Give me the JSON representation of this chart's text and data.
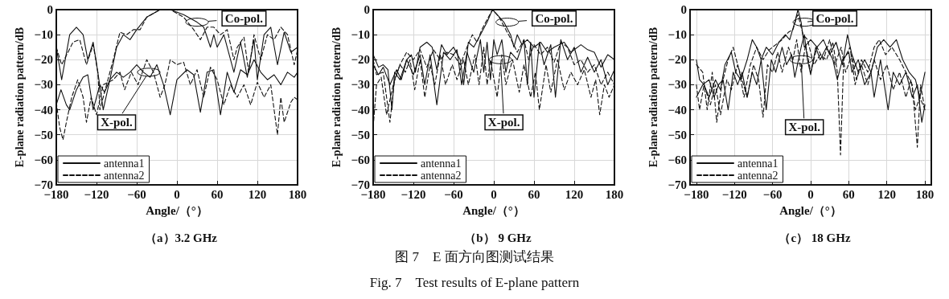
{
  "chart_data": [
    {
      "type": "line",
      "title": "（a）3.2 GHz",
      "xlabel": "Angle/（°）",
      "ylabel": "E-plane radiation pattern/dB",
      "xlim": [
        -180,
        180
      ],
      "xticks": [
        -180,
        -120,
        -60,
        0,
        60,
        120,
        180
      ],
      "ylim": [
        -70,
        0
      ],
      "yticks": [
        -70,
        -60,
        -50,
        -40,
        -30,
        -20,
        -10,
        0
      ],
      "grid": true,
      "legend": "bottom left",
      "marker": "none",
      "annotations": [
        {
          "text": "Co-pol.",
          "x": 30,
          "y": -5
        },
        {
          "text": "X-pol.",
          "x": -42,
          "y": -25
        }
      ],
      "series": [
        {
          "name": "antenna1",
          "color": "#111111",
          "line_style": "solid",
          "x": [
            -180,
            -172,
            -160,
            -150,
            -140,
            -133,
            -125,
            -118,
            -110,
            -100,
            -90,
            -80,
            -70,
            -60,
            -45,
            -25,
            -10,
            10,
            30,
            40,
            50,
            55,
            60,
            70,
            85,
            95,
            105,
            115,
            120,
            130,
            140,
            150,
            160,
            170,
            180
          ],
          "values": [
            -15,
            -28,
            -10,
            -7,
            -10,
            -20,
            -13,
            -25,
            -40,
            -28,
            -15,
            -10,
            -12,
            -8,
            -3,
            0,
            0,
            -2,
            -5,
            -7,
            -15,
            -10,
            -15,
            -10,
            -25,
            -13,
            -27,
            -12,
            -28,
            -10,
            -7,
            -22,
            -9,
            -17,
            -15
          ]
        },
        {
          "name": "antenna2",
          "color": "#111111",
          "line_style": "dashed",
          "x": [
            -180,
            -172,
            -155,
            -145,
            -135,
            -125,
            -118,
            -115,
            -105,
            -95,
            -85,
            -75,
            -65,
            -55,
            -45,
            -25,
            -10,
            10,
            25,
            35,
            45,
            55,
            65,
            75,
            85,
            90,
            100,
            107,
            115,
            125,
            135,
            145,
            155,
            165,
            175,
            180
          ],
          "values": [
            -15,
            -22,
            -13,
            -12,
            -22,
            -14,
            -25,
            -40,
            -30,
            -20,
            -9,
            -10,
            -8,
            -8,
            -3,
            0,
            0,
            -3,
            -8,
            -12,
            -7,
            -7,
            -10,
            -8,
            -20,
            -15,
            -11,
            -25,
            -10,
            -20,
            -10,
            -12,
            -7,
            -10,
            -22,
            -16
          ]
        },
        {
          "color": "#111111",
          "line_style": "solid",
          "x": [
            -180,
            -173,
            -165,
            -160,
            -150,
            -140,
            -133,
            -125,
            -115,
            -108,
            -100,
            -90,
            -80,
            -70,
            -60,
            -50,
            -40,
            -30,
            -20,
            -10,
            0,
            15,
            25,
            35,
            45,
            55,
            65,
            75,
            85,
            95,
            105,
            115,
            125,
            135,
            145,
            155,
            165,
            175,
            180
          ],
          "values": [
            -38,
            -32,
            -38,
            -40,
            -32,
            -27,
            -26,
            -40,
            -30,
            -33,
            -28,
            -25,
            -27,
            -25,
            -22,
            -25,
            -27,
            -22,
            -30,
            -42,
            -28,
            -24,
            -26,
            -41,
            -25,
            -24,
            -42,
            -25,
            -33,
            -24,
            -26,
            -20,
            -25,
            -28,
            -26,
            -30,
            -25,
            -27,
            -25
          ]
        },
        {
          "color": "#111111",
          "line_style": "dashed",
          "x": [
            -180,
            -175,
            -170,
            -165,
            -157,
            -148,
            -140,
            -135,
            -128,
            -120,
            -110,
            -95,
            -85,
            -78,
            -68,
            -58,
            -45,
            -35,
            -25,
            -18,
            -10,
            0,
            10,
            20,
            30,
            40,
            50,
            60,
            70,
            80,
            90,
            100,
            110,
            120,
            130,
            140,
            150,
            155,
            160,
            170,
            175,
            180
          ],
          "values": [
            -37,
            -47,
            -52,
            -45,
            -35,
            -28,
            -35,
            -45,
            -35,
            -42,
            -30,
            -28,
            -25,
            -32,
            -25,
            -30,
            -20,
            -25,
            -35,
            -30,
            -20,
            -22,
            -21,
            -30,
            -24,
            -35,
            -23,
            -28,
            -38,
            -30,
            -35,
            -30,
            -38,
            -29,
            -35,
            -30,
            -50,
            -35,
            -45,
            -37,
            -35,
            -36
          ]
        }
      ]
    },
    {
      "type": "line",
      "title": "（b） 9 GHz",
      "xlabel": "Angle/（°）",
      "ylabel": "E-plane radiation pattern/dB",
      "xlim": [
        -180,
        180
      ],
      "xticks": [
        -180,
        -120,
        -60,
        0,
        60,
        120,
        180
      ],
      "ylim": [
        -70,
        0
      ],
      "yticks": [
        -70,
        -60,
        -50,
        -40,
        -30,
        -20,
        -10,
        0
      ],
      "grid": true,
      "legend": "bottom left",
      "marker": "none",
      "annotations": [
        {
          "text": "Co-pol.",
          "x": 20,
          "y": -5
        },
        {
          "text": "X-pol.",
          "x": 10,
          "y": -20
        }
      ],
      "series": [
        {
          "name": "antenna1",
          "color": "#111111",
          "line_style": "solid",
          "x": [
            -180,
            -172,
            -165,
            -158,
            -152,
            -148,
            -140,
            -130,
            -123,
            -117,
            -110,
            -100,
            -92,
            -85,
            -78,
            -70,
            -60,
            -50,
            -45,
            -38,
            -30,
            -20,
            -10,
            -2,
            5,
            15,
            25,
            30,
            35,
            42,
            50,
            60,
            70,
            80,
            90,
            105,
            115,
            130,
            140,
            150,
            160,
            170,
            180
          ],
          "values": [
            -18,
            -23,
            -22,
            -24,
            -40,
            -25,
            -28,
            -20,
            -18,
            -25,
            -15,
            -13,
            -15,
            -24,
            -14,
            -18,
            -15,
            -20,
            -30,
            -13,
            -15,
            -10,
            -5,
            0,
            -2,
            -5,
            -10,
            -15,
            -10,
            -14,
            -12,
            -15,
            -13,
            -17,
            -15,
            -13,
            -17,
            -14,
            -16,
            -17,
            -23,
            -18,
            -20
          ]
        },
        {
          "name": "antenna2",
          "color": "#111111",
          "line_style": "dashed",
          "x": [
            -180,
            -175,
            -165,
            -155,
            -148,
            -140,
            -130,
            -120,
            -110,
            -100,
            -90,
            -80,
            -70,
            -60,
            -50,
            -40,
            -32,
            -25,
            -18,
            -8,
            -2,
            8,
            18,
            28,
            35,
            45,
            52,
            60,
            70,
            80,
            90,
            100,
            110,
            120,
            130,
            140,
            150,
            160,
            170,
            180
          ],
          "values": [
            -20,
            -26,
            -25,
            -45,
            -28,
            -22,
            -17,
            -20,
            -16,
            -23,
            -16,
            -20,
            -17,
            -18,
            -22,
            -15,
            -10,
            -13,
            -8,
            -3,
            0,
            -3,
            -8,
            -13,
            -17,
            -12,
            -20,
            -14,
            -18,
            -15,
            -21,
            -13,
            -15,
            -22,
            -20,
            -25,
            -22,
            -30,
            -25,
            -30
          ]
        },
        {
          "color": "#111111",
          "line_style": "solid",
          "x": [
            -180,
            -172,
            -165,
            -155,
            -145,
            -138,
            -130,
            -120,
            -110,
            -103,
            -95,
            -85,
            -75,
            -65,
            -55,
            -48,
            -40,
            -30,
            -20,
            -15,
            -10,
            -5,
            0,
            5,
            12,
            18,
            25,
            35,
            45,
            50,
            55,
            60,
            68,
            75,
            85,
            92,
            100,
            110,
            120,
            130,
            140,
            150,
            160,
            170,
            180
          ],
          "values": [
            -22,
            -26,
            -23,
            -30,
            -24,
            -28,
            -20,
            -26,
            -18,
            -30,
            -18,
            -38,
            -17,
            -20,
            -16,
            -30,
            -17,
            -25,
            -12,
            -25,
            -13,
            -28,
            -12,
            -18,
            -12,
            -25,
            -17,
            -20,
            -12,
            -30,
            -13,
            -35,
            -13,
            -22,
            -14,
            -35,
            -12,
            -20,
            -15,
            -25,
            -19,
            -25,
            -20,
            -30,
            -24
          ]
        },
        {
          "color": "#111111",
          "line_style": "dashed",
          "x": [
            -180,
            -175,
            -168,
            -160,
            -150,
            -140,
            -132,
            -125,
            -118,
            -110,
            -103,
            -95,
            -88,
            -80,
            -72,
            -62,
            -55,
            -45,
            -38,
            -28,
            -22,
            -15,
            -10,
            -5,
            5,
            12,
            18,
            28,
            38,
            45,
            55,
            62,
            68,
            78,
            85,
            95,
            105,
            115,
            125,
            135,
            145,
            152,
            158,
            165,
            172,
            180
          ],
          "values": [
            -47,
            -30,
            -27,
            -42,
            -30,
            -22,
            -25,
            -20,
            -32,
            -20,
            -35,
            -22,
            -30,
            -18,
            -30,
            -22,
            -28,
            -20,
            -30,
            -18,
            -30,
            -15,
            -30,
            -20,
            -35,
            -18,
            -30,
            -20,
            -33,
            -22,
            -35,
            -25,
            -40,
            -22,
            -33,
            -20,
            -32,
            -25,
            -30,
            -24,
            -35,
            -28,
            -42,
            -30,
            -35,
            -30
          ]
        }
      ]
    },
    {
      "type": "line",
      "title": "（c） 18 GHz",
      "xlabel": "Angle/（°）",
      "ylabel": "E-plane radiation pattern/dB",
      "xlim": [
        -190,
        190
      ],
      "xticks": [
        -180,
        -120,
        -60,
        0,
        60,
        120,
        180
      ],
      "ylim": [
        -70,
        0
      ],
      "yticks": [
        -70,
        -60,
        -50,
        -40,
        -30,
        -20,
        -10,
        0
      ],
      "grid": true,
      "legend": "bottom left",
      "marker": "none",
      "annotations": [
        {
          "text": "Co-pol.",
          "x": -10,
          "y": -5
        },
        {
          "text": "X-pol.",
          "x": -15,
          "y": -20
        }
      ],
      "series": [
        {
          "name": "antenna1",
          "color": "#111111",
          "line_style": "solid",
          "x": [
            -180,
            -175,
            -168,
            -160,
            -150,
            -142,
            -135,
            -125,
            -118,
            -110,
            -100,
            -92,
            -85,
            -78,
            -70,
            -60,
            -50,
            -40,
            -33,
            -25,
            -20,
            -15,
            -10,
            0,
            10,
            20,
            30,
            40,
            50,
            58,
            65,
            75,
            85,
            95,
            105,
            115,
            125,
            135,
            145,
            155,
            165,
            172,
            180
          ],
          "values": [
            -20,
            -28,
            -30,
            -35,
            -28,
            -32,
            -22,
            -17,
            -25,
            -28,
            -20,
            -12,
            -15,
            -20,
            -15,
            -18,
            -13,
            -10,
            -12,
            -5,
            0,
            -5,
            -15,
            -12,
            -15,
            -12,
            -18,
            -13,
            -22,
            -10,
            -18,
            -25,
            -20,
            -25,
            -15,
            -12,
            -15,
            -12,
            -20,
            -25,
            -28,
            -35,
            -25
          ]
        },
        {
          "name": "antenna2",
          "color": "#111111",
          "line_style": "dashed",
          "x": [
            -180,
            -170,
            -163,
            -155,
            -148,
            -140,
            -130,
            -122,
            -112,
            -105,
            -95,
            -85,
            -75,
            -65,
            -55,
            -45,
            -35,
            -28,
            -22,
            -20,
            -12,
            -5,
            5,
            15,
            25,
            35,
            42,
            47,
            52,
            62,
            70,
            80,
            90,
            100,
            108,
            118,
            128,
            140,
            150,
            160,
            168,
            173,
            180
          ],
          "values": [
            -22,
            -25,
            -40,
            -25,
            -45,
            -30,
            -20,
            -15,
            -25,
            -35,
            -22,
            -15,
            -20,
            -16,
            -14,
            -12,
            -9,
            -8,
            -3,
            -2,
            -10,
            -12,
            -22,
            -18,
            -20,
            -13,
            -25,
            -58,
            -20,
            -15,
            -30,
            -20,
            -25,
            -15,
            -12,
            -18,
            -15,
            -20,
            -25,
            -30,
            -55,
            -30,
            -40
          ]
        },
        {
          "color": "#111111",
          "line_style": "solid",
          "x": [
            -180,
            -170,
            -160,
            -152,
            -145,
            -138,
            -130,
            -122,
            -115,
            -108,
            -100,
            -92,
            -85,
            -78,
            -70,
            -62,
            -55,
            -45,
            -38,
            -30,
            -25,
            -15,
            -10,
            -5,
            0,
            8,
            15,
            25,
            35,
            42,
            50,
            60,
            65,
            75,
            85,
            95,
            100,
            110,
            122,
            130,
            140,
            150,
            160,
            168,
            175,
            180
          ],
          "values": [
            -35,
            -30,
            -28,
            -35,
            -30,
            -28,
            -40,
            -25,
            -30,
            -25,
            -35,
            -25,
            -30,
            -20,
            -40,
            -20,
            -25,
            -15,
            -22,
            -18,
            -27,
            -15,
            -10,
            -20,
            -26,
            -15,
            -20,
            -15,
            -20,
            -28,
            -20,
            -17,
            -25,
            -20,
            -30,
            -25,
            -35,
            -20,
            -40,
            -25,
            -30,
            -25,
            -35,
            -30,
            -45,
            -38
          ]
        },
        {
          "color": "#111111",
          "line_style": "dashed",
          "x": [
            -180,
            -175,
            -168,
            -158,
            -150,
            -142,
            -132,
            -125,
            -115,
            -108,
            -100,
            -90,
            -82,
            -75,
            -68,
            -60,
            -52,
            -45,
            -35,
            -28,
            -22,
            -15,
            -8,
            0,
            10,
            20,
            30,
            38,
            48,
            55,
            65,
            72,
            80,
            90,
            100,
            110,
            120,
            130,
            140,
            150,
            158,
            165,
            172,
            180
          ],
          "values": [
            -30,
            -40,
            -30,
            -38,
            -30,
            -42,
            -28,
            -32,
            -22,
            -28,
            -35,
            -22,
            -28,
            -43,
            -22,
            -25,
            -17,
            -25,
            -15,
            -20,
            -12,
            -25,
            -14,
            -25,
            -15,
            -20,
            -12,
            -22,
            -15,
            -25,
            -18,
            -28,
            -22,
            -30,
            -20,
            -28,
            -22,
            -32,
            -25,
            -35,
            -28,
            -40,
            -35,
            -40
          ]
        }
      ]
    },
    {
      "type": "other",
      "annotations": [
        "图 7　E 面方向图测试结果",
        "Fig. 7　Test results of E-plane pattern"
      ]
    }
  ]
}
